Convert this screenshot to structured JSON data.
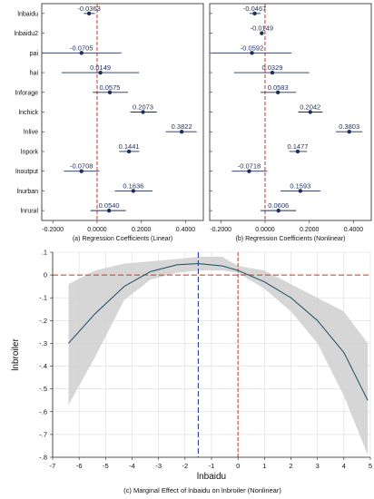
{
  "chart_data": [
    {
      "type": "scatter",
      "subtype": "coefficient-plot",
      "title": "(a) Regression Coefficients (Linear)",
      "categories": [
        "lnbaidu",
        "lnbaidu2",
        "pai",
        "hai",
        "lnforage",
        "lnchick",
        "lnlive",
        "lnpork",
        "lnoutput",
        "lnurban",
        "lnrural"
      ],
      "estimates": [
        -0.0363,
        null,
        -0.0705,
        0.0149,
        0.0575,
        0.2073,
        0.3822,
        0.1441,
        -0.0708,
        0.1636,
        0.054
      ],
      "labels": [
        "-0.0363",
        "",
        "-0.0705",
        "0.0149",
        "0.0575",
        "0.2073",
        "0.3822",
        "0.1441",
        "-0.0708",
        "0.1636",
        "0.0540"
      ],
      "ci_low": [
        -0.06,
        null,
        -0.25,
        -0.16,
        -0.02,
        0.15,
        0.31,
        0.1,
        -0.15,
        0.08,
        -0.03
      ],
      "ci_high": [
        -0.01,
        null,
        0.11,
        0.19,
        0.14,
        0.27,
        0.45,
        0.19,
        0.01,
        0.25,
        0.13
      ],
      "x_ticks": [
        "-0.2000",
        "0.0000",
        "0.2000",
        "0.4000"
      ],
      "xlim": [
        -0.25,
        0.48
      ],
      "ref_line": 0
    },
    {
      "type": "scatter",
      "subtype": "coefficient-plot",
      "title": "(b) Regression Coefficients (Nonlinear)",
      "categories": [
        "lnbaidu",
        "lnbaidu2",
        "pai",
        "hai",
        "lnforage",
        "lnchick",
        "lnlive",
        "lnpork",
        "lnoutput",
        "lnurban",
        "lnrural"
      ],
      "estimates": [
        -0.0467,
        -0.0149,
        -0.0592,
        0.0329,
        0.0583,
        0.2042,
        0.3803,
        0.1477,
        -0.0718,
        0.1593,
        0.0606
      ],
      "labels": [
        "-0.0467",
        "-0.0149",
        "-0.0592",
        "0.0329",
        "0.0583",
        "0.2042",
        "0.3803",
        "0.1477",
        "-0.0718",
        "0.1593",
        "0.0606"
      ],
      "ci_low": [
        -0.07,
        -0.02,
        -0.24,
        -0.14,
        -0.02,
        0.15,
        0.32,
        0.11,
        -0.15,
        0.07,
        -0.02
      ],
      "ci_high": [
        -0.02,
        -0.01,
        0.12,
        0.2,
        0.14,
        0.26,
        0.44,
        0.19,
        0.01,
        0.25,
        0.14
      ],
      "x_ticks": [
        "-0.2000",
        "0.0000",
        "0.2000",
        "0.4000"
      ],
      "xlim": [
        -0.25,
        0.48
      ],
      "ref_line": 0
    },
    {
      "type": "line",
      "title": "(c) Marginal Effect of lnbaidu on lnbroiler (Nonlinear)",
      "xlabel": "lnbaidu",
      "ylabel": "lnbroiler",
      "x": [
        -6.4,
        -5.4,
        -4.3,
        -3.3,
        -2.3,
        -1.5,
        -0.6,
        0,
        1.0,
        2.0,
        3.0,
        4.0,
        4.9
      ],
      "y": [
        -0.3,
        -0.17,
        -0.05,
        0.015,
        0.045,
        0.05,
        0.04,
        0.02,
        -0.03,
        -0.1,
        -0.2,
        -0.34,
        -0.55
      ],
      "band_low": [
        -0.57,
        -0.36,
        -0.11,
        -0.02,
        0.01,
        0.02,
        0.02,
        0.01,
        -0.06,
        -0.16,
        -0.3,
        -0.53,
        -0.79
      ],
      "band_high": [
        -0.04,
        0.02,
        0.05,
        0.06,
        0.07,
        0.08,
        0.08,
        0.04,
        0.02,
        -0.04,
        -0.1,
        -0.16,
        -0.3
      ],
      "x_ticks": [
        "-7",
        "-6",
        "-5",
        "-4",
        "-3",
        "-2",
        "-1",
        "0",
        "1",
        "2",
        "3",
        "4",
        "5"
      ],
      "y_ticks": [
        ".1",
        "0",
        "-.1",
        "-.2",
        "-.3",
        "-.4",
        "-.5",
        "-.6",
        "-.7",
        "-.8"
      ],
      "xlim": [
        -7,
        5
      ],
      "ylim": [
        -0.8,
        0.1
      ],
      "ref_h": 0,
      "ref_v": [
        -1.5,
        0
      ],
      "grid": true
    }
  ]
}
